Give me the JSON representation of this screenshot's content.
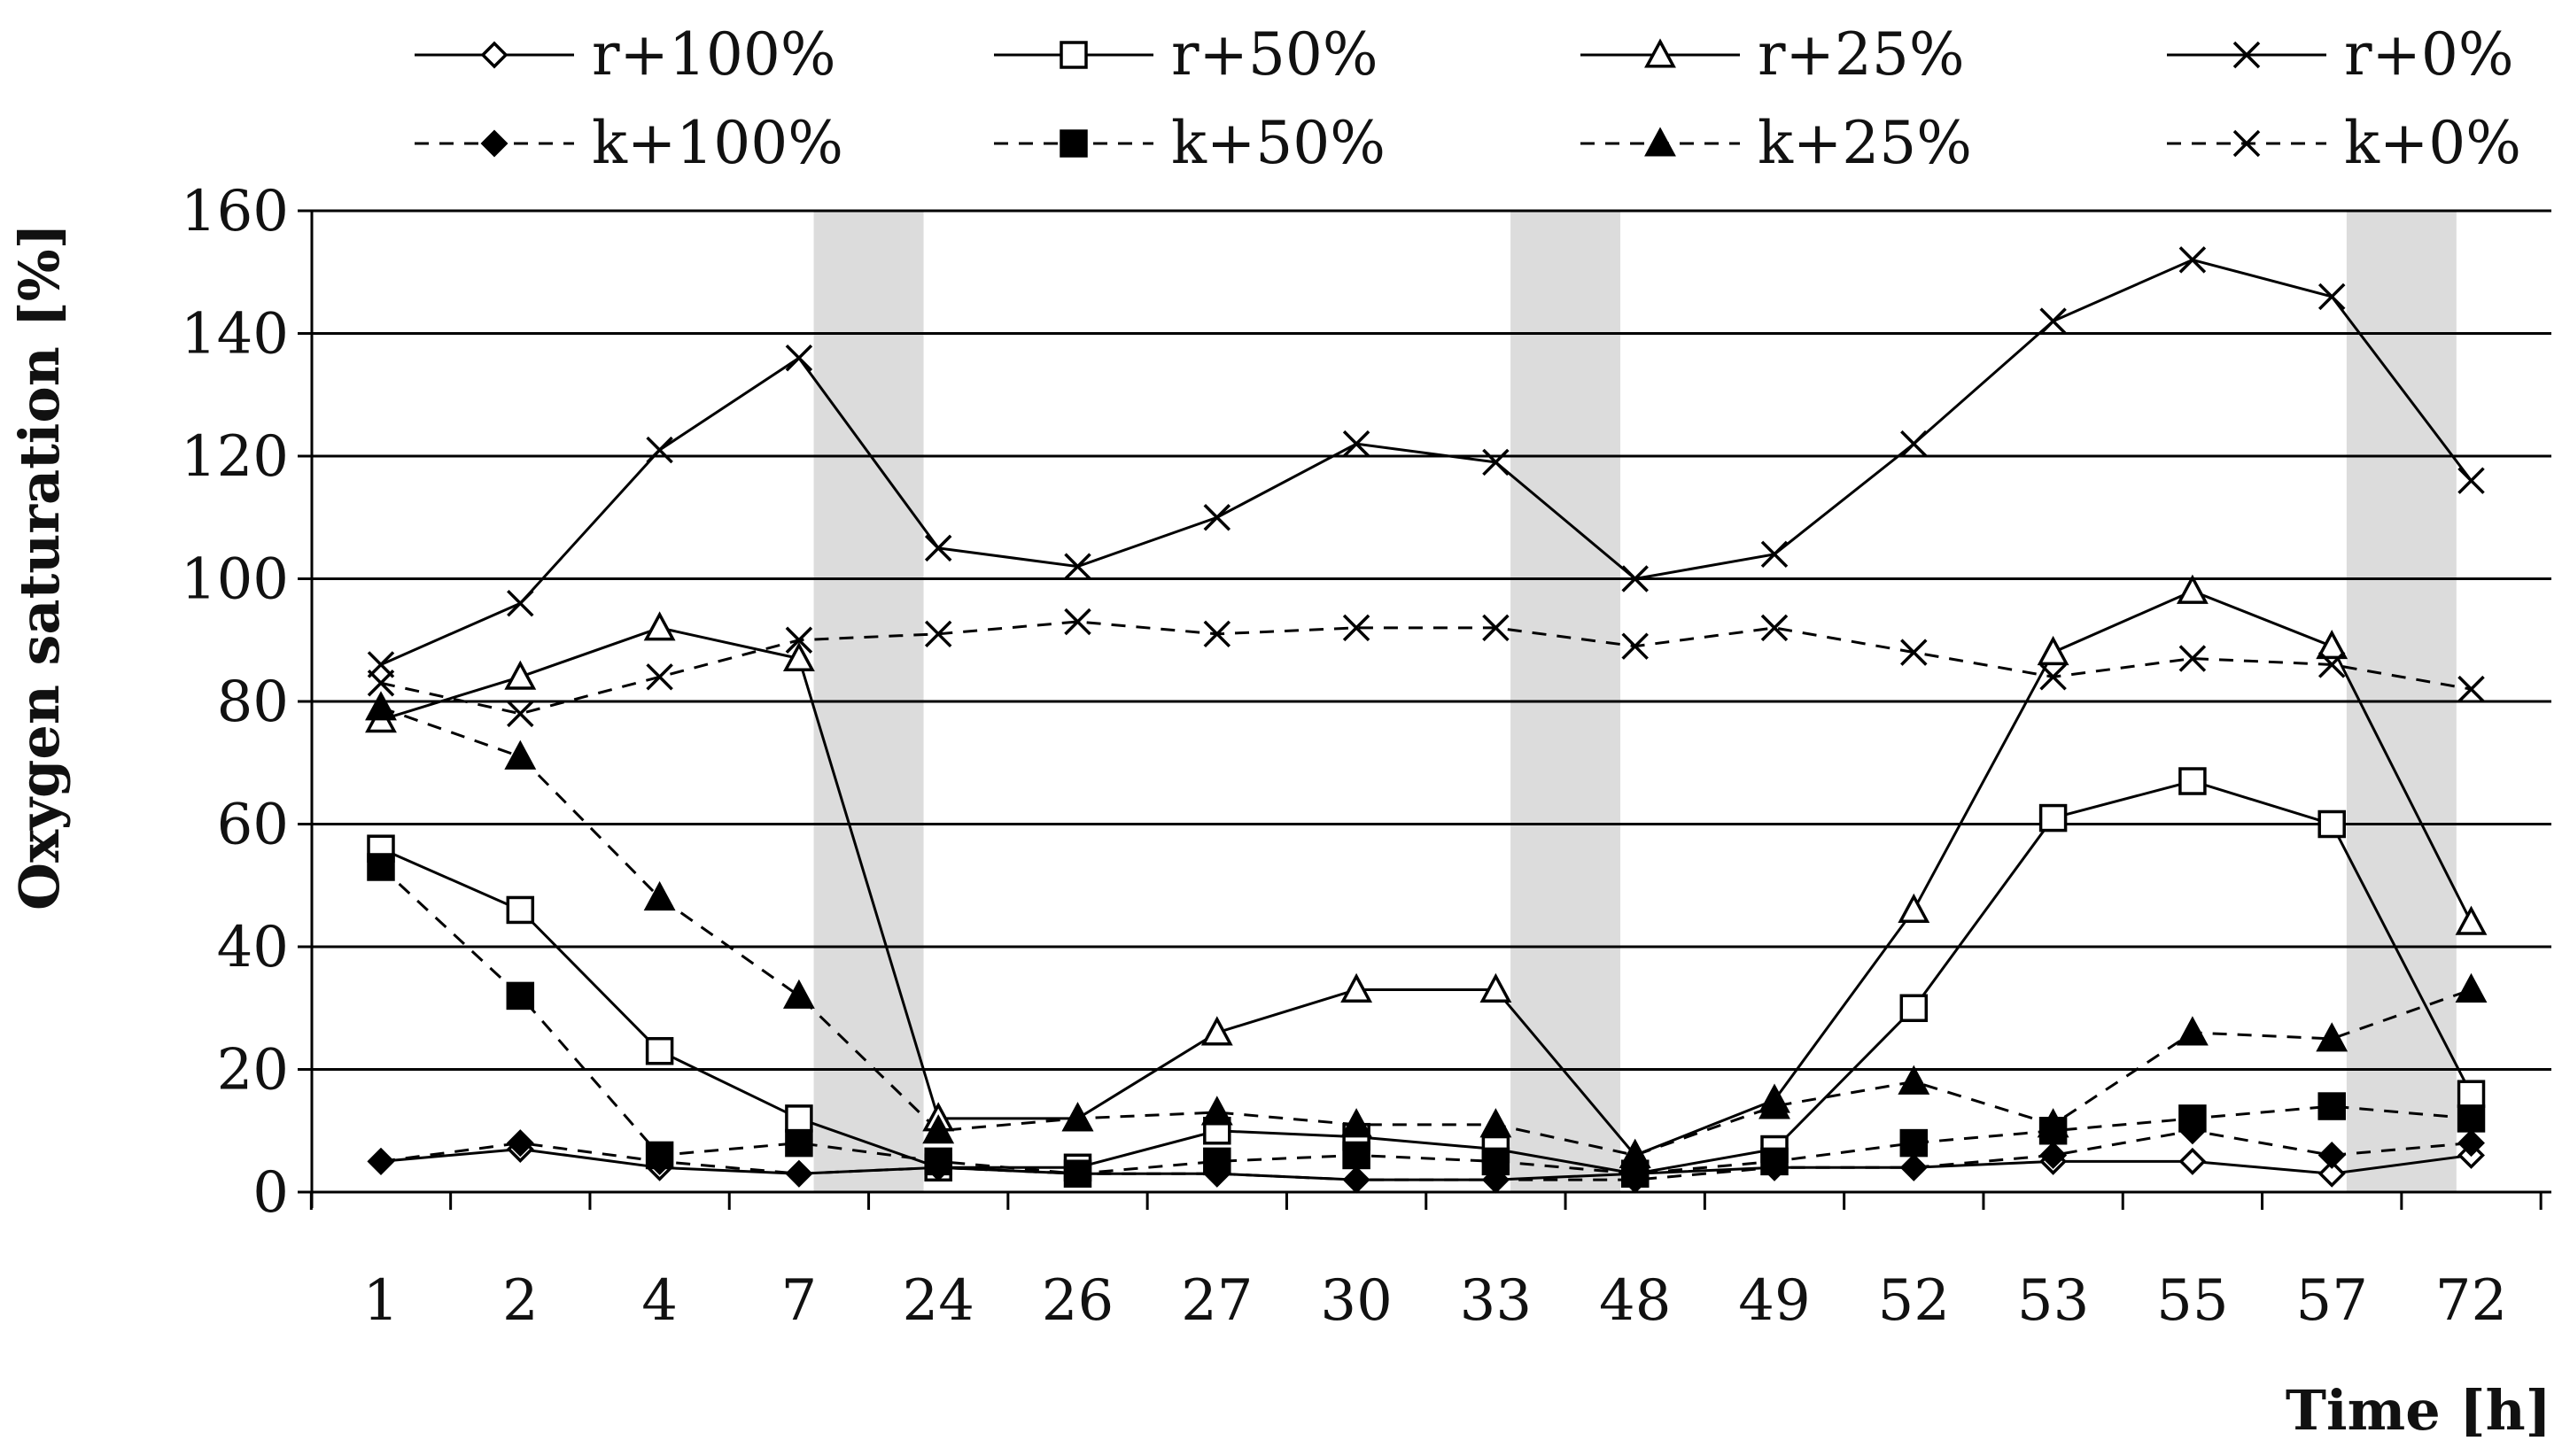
{
  "chart_data": {
    "type": "line",
    "title": "",
    "xlabel": "Time [h]",
    "ylabel": "Oxygen saturation [%]",
    "ylim": [
      0,
      160
    ],
    "yticks": [
      "0",
      "20",
      "40",
      "60",
      "80",
      "100",
      "120",
      "140",
      "160"
    ],
    "categories": [
      "1",
      "2",
      "4",
      "7",
      "24",
      "26",
      "27",
      "30",
      "33",
      "48",
      "49",
      "52",
      "53",
      "55",
      "57",
      "72"
    ],
    "grid": "horizontal",
    "legend_position": "top",
    "shaded_intervals": [
      [
        "7",
        "24"
      ],
      [
        "33",
        "48"
      ],
      [
        "57",
        "72"
      ]
    ],
    "series": [
      {
        "name": "r+100%",
        "style": "solid",
        "marker": "diamond-open",
        "values": [
          5,
          7,
          4,
          3,
          4,
          3,
          3,
          2,
          2,
          3,
          4,
          4,
          5,
          5,
          3,
          6
        ]
      },
      {
        "name": "r+50%",
        "style": "solid",
        "marker": "square-open",
        "values": [
          56,
          46,
          23,
          12,
          4,
          4,
          10,
          9,
          7,
          3,
          7,
          30,
          61,
          67,
          60,
          16
        ]
      },
      {
        "name": "r+25%",
        "style": "solid",
        "marker": "triangle-open",
        "values": [
          77,
          84,
          92,
          87,
          12,
          12,
          26,
          33,
          33,
          6,
          15,
          46,
          88,
          98,
          89,
          44
        ]
      },
      {
        "name": "r+0%",
        "style": "solid",
        "marker": "x",
        "values": [
          86,
          96,
          121,
          136,
          105,
          102,
          110,
          122,
          119,
          100,
          104,
          122,
          142,
          152,
          146,
          116
        ]
      },
      {
        "name": "k+100%",
        "style": "dashed",
        "marker": "diamond-filled",
        "values": [
          5,
          8,
          5,
          3,
          4,
          3,
          3,
          2,
          2,
          2,
          4,
          4,
          6,
          10,
          6,
          8
        ]
      },
      {
        "name": "k+50%",
        "style": "dashed",
        "marker": "square-filled",
        "values": [
          53,
          32,
          6,
          8,
          5,
          3,
          5,
          6,
          5,
          3,
          5,
          8,
          10,
          12,
          14,
          12
        ]
      },
      {
        "name": "k+25%",
        "style": "dashed",
        "marker": "triangle-filled",
        "values": [
          79,
          71,
          48,
          32,
          10,
          12,
          13,
          11,
          11,
          6,
          14,
          18,
          11,
          26,
          25,
          33
        ]
      },
      {
        "name": "k+0%",
        "style": "dashed",
        "marker": "x",
        "values": [
          83,
          78,
          84,
          90,
          91,
          93,
          91,
          92,
          92,
          89,
          92,
          88,
          84,
          87,
          86,
          82
        ]
      }
    ]
  }
}
